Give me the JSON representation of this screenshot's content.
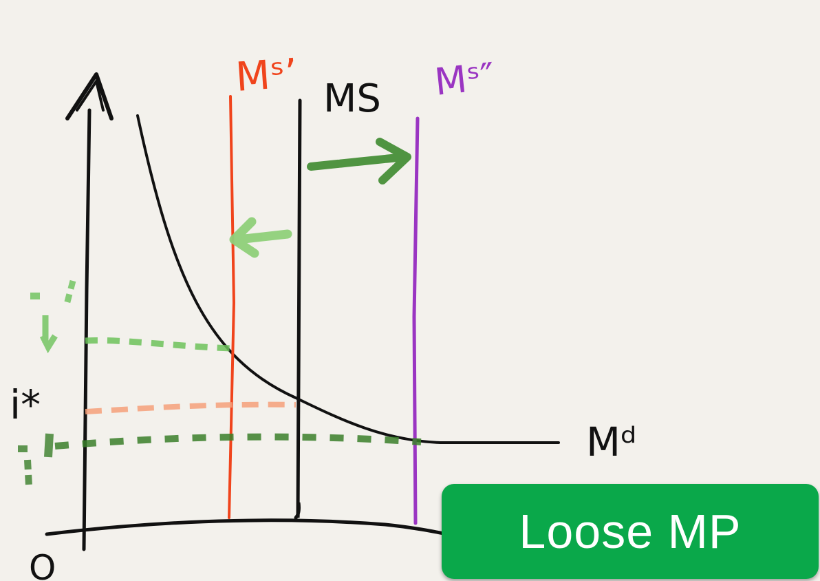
{
  "diagram": {
    "labels": {
      "ms_contracted": "Mˢʼ",
      "ms": "MS",
      "ms_expanded": "Mˢ″",
      "money_demand": "Mᵈ",
      "interest_rate": "i*",
      "origin": "O"
    },
    "colors": {
      "ink": "#111111",
      "ms_contracted": "#f0441c",
      "ms_expanded": "#9a35c2",
      "arrow_right": "#3e8a2f",
      "arrow_left": "#8fd07a",
      "guide_green_light": "#6cc25a",
      "guide_salmon": "#f4a07a",
      "guide_green_dark": "#3a7f2a",
      "badge": "#0aa84a"
    }
  },
  "badge": {
    "text": "Loose MP"
  }
}
